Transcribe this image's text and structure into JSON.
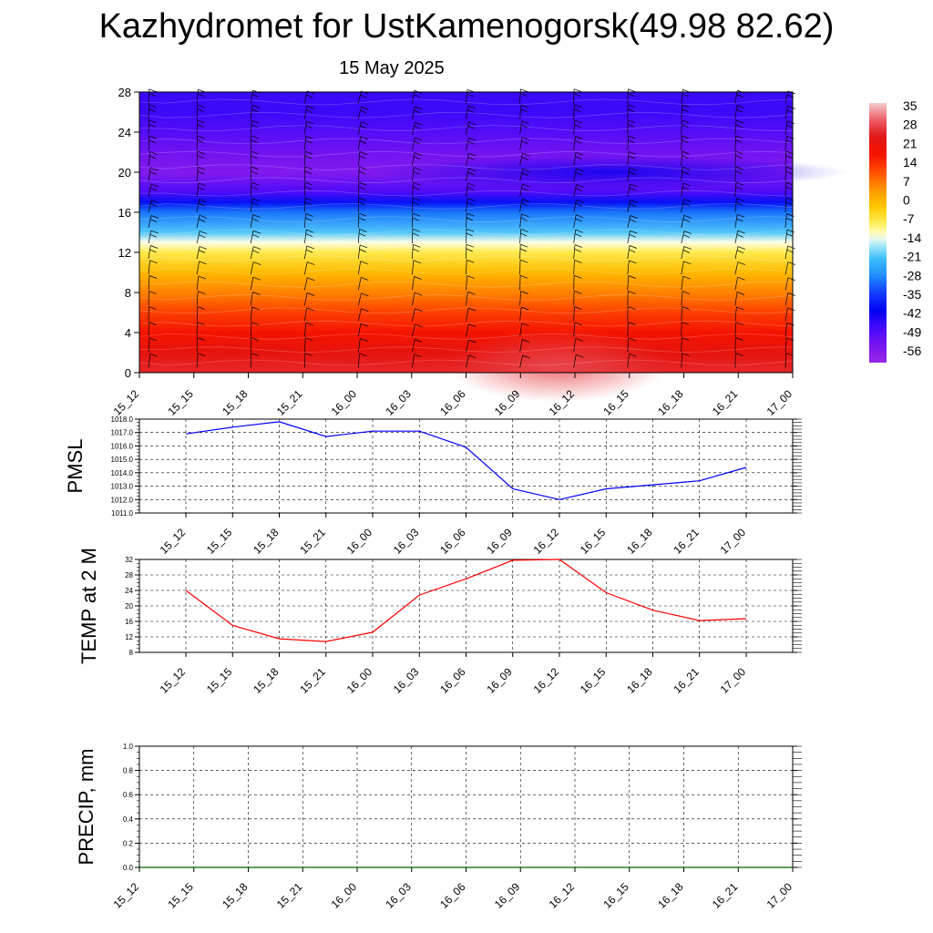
{
  "title": "Kazhydromet for UstKamenogorsk(49.98 82.62)",
  "subtitle": "15 May 2025",
  "time_labels": [
    "15_12",
    "15_15",
    "15_18",
    "15_21",
    "16_00",
    "16_03",
    "16_06",
    "16_09",
    "16_12",
    "16_15",
    "16_18",
    "16_21",
    "17_00"
  ],
  "colors": {
    "pmsl_line": "#0000ff",
    "temp_line": "#ff0000",
    "precip_line": "#006400",
    "wind_barb": "#000000",
    "grid": "#000000"
  },
  "chart_data": [
    {
      "type": "heatmap",
      "name": "temperature-profile",
      "ylim": [
        0,
        28
      ],
      "y_ticks": [
        0,
        4,
        8,
        12,
        16,
        20,
        24,
        28
      ],
      "colorbar": {
        "labels": [
          "35",
          "28",
          "21",
          "14",
          "7",
          "0",
          "-7",
          "-14",
          "-21",
          "-28",
          "-35",
          "-42",
          "-49",
          "-56"
        ],
        "range": [
          -63,
          42
        ]
      },
      "temperature_by_level": [
        {
          "level": 0,
          "value": 30
        },
        {
          "level": 2,
          "value": 26
        },
        {
          "level": 4,
          "value": 21
        },
        {
          "level": 6,
          "value": 16
        },
        {
          "level": 8,
          "value": 9
        },
        {
          "level": 10,
          "value": 2
        },
        {
          "level": 12,
          "value": -6
        },
        {
          "level": 13,
          "value": -12
        },
        {
          "level": 14,
          "value": -20
        },
        {
          "level": 16,
          "value": -30
        },
        {
          "level": 17,
          "value": -40
        },
        {
          "level": 18,
          "value": -50
        },
        {
          "level": 20,
          "value": -58
        },
        {
          "level": 22,
          "value": -55
        },
        {
          "level": 24,
          "value": -51
        },
        {
          "level": 26,
          "value": -48
        },
        {
          "level": 28,
          "value": -48
        }
      ]
    },
    {
      "type": "line",
      "name": "pmsl",
      "ylabel": "PMSL",
      "ylim": [
        1011.0,
        1018.0
      ],
      "y_ticks": [
        "1011.0",
        "1012.0",
        "1013.0",
        "1014.0",
        "1015.0",
        "1016.0",
        "1017.0",
        "1018.0"
      ],
      "series": [
        {
          "values": [
            1016.9,
            1017.4,
            1017.8,
            1016.7,
            1017.1,
            1017.1,
            1015.9,
            1012.8,
            1012.0,
            1012.8,
            1013.1,
            1013.4,
            1014.4
          ]
        }
      ]
    },
    {
      "type": "line",
      "name": "temp-2m",
      "ylabel": "TEMP at 2 M",
      "ylim": [
        8,
        32
      ],
      "y_ticks": [
        "8",
        "12",
        "16",
        "20",
        "24",
        "28",
        "32"
      ],
      "series": [
        {
          "values": [
            24.0,
            15.0,
            11.5,
            10.8,
            13.2,
            22.8,
            27.0,
            31.8,
            32.0,
            23.4,
            18.9,
            16.2,
            16.7
          ]
        }
      ]
    },
    {
      "type": "line",
      "name": "precip",
      "ylabel": "PRECIP, mm",
      "ylim": [
        0.0,
        1.0
      ],
      "y_ticks": [
        "0.0",
        "0.2",
        "0.4",
        "0.6",
        "0.8",
        "1.0"
      ],
      "series": [
        {
          "values": [
            0,
            0,
            0,
            0,
            0,
            0,
            0,
            0,
            0,
            0,
            0,
            0,
            0
          ]
        }
      ]
    }
  ]
}
